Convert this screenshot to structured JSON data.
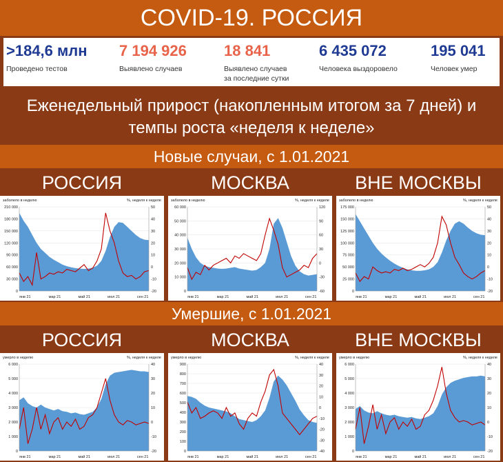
{
  "title": "COVID-19. РОССИЯ",
  "stats": [
    {
      "value": ">184,6 млн",
      "label": "Проведено тестов",
      "color": "#1f3a93"
    },
    {
      "value": "7 194 926",
      "label": "Выявлено случаев",
      "color": "#e8634a"
    },
    {
      "value": "18 841",
      "label": "Выявлено случаев\nза последние сутки",
      "color": "#e8634a"
    },
    {
      "value": "6 435 072",
      "label": "Человека выздоровело",
      "color": "#1f3a93"
    },
    {
      "value": "195 041",
      "label": "Человек умер",
      "color": "#1f3a93"
    }
  ],
  "subtitle": "Еженедельный прирост (накопленным итогом за 7 дней) и темпы роста «неделя к неделе»",
  "section_cases": "Новые случаи, с 1.01.2021",
  "section_deaths": "Умершие, с 1.01.2021",
  "regions": [
    "РОССИЯ",
    "МОСКВА",
    "ВНЕ МОСКВЫ"
  ],
  "colors": {
    "area": "#5b9bd5",
    "line": "#c00000",
    "band_light": "#c55a11",
    "band_dark": "#8b3a16"
  },
  "chart_data": [
    {
      "type": "area",
      "id": "cases-russia",
      "ylabel": "заболело в неделю",
      "y2label": "%, неделя к неделе",
      "yticks": [
        "210 000",
        "180 000",
        "150 000",
        "120 000",
        "90 000",
        "60 000",
        "30 000",
        "0"
      ],
      "y2ticks": [
        "50",
        "40",
        "30",
        "20",
        "10",
        "0",
        "-10",
        "-20"
      ],
      "ylim": [
        0,
        210000
      ],
      "y2lim": [
        -20,
        50
      ],
      "xticks": [
        "янв 21",
        "мар 21",
        "май 21",
        "июл 21",
        "сен 21"
      ],
      "series": [
        {
          "values": [
            195000,
            175000,
            160000,
            140000,
            120000,
            105000,
            95000,
            85000,
            78000,
            72000,
            66000,
            62000,
            59000,
            57000,
            56000,
            55000,
            56000,
            58000,
            63000,
            75000,
            100000,
            135000,
            160000,
            172000,
            170000,
            160000,
            150000,
            140000,
            132000,
            128000,
            127000
          ]
        },
        {
          "values": [
            -5,
            -12,
            -8,
            -15,
            12,
            -10,
            -8,
            -5,
            -6,
            -4,
            -5,
            -2,
            -3,
            -4,
            -1,
            2,
            -3,
            -1,
            5,
            15,
            45,
            30,
            20,
            5,
            -5,
            -8,
            -7,
            -10,
            -8,
            -4,
            -3
          ]
        }
      ]
    },
    {
      "type": "area",
      "id": "cases-moscow",
      "ylabel": "заболело в неделю",
      "y2label": "%, неделя к неделе",
      "yticks": [
        "60 000",
        "50 000",
        "40 000",
        "30 000",
        "20 000",
        "10 000",
        "0"
      ],
      "y2ticks": [
        "120",
        "90",
        "60",
        "30",
        "0",
        "-30",
        "-60"
      ],
      "ylim": [
        0,
        60000
      ],
      "y2lim": [
        -60,
        120
      ],
      "xticks": [
        "янв 21",
        "мар 21",
        "май 21",
        "июл 21",
        "сен 21"
      ],
      "series": [
        {
          "values": [
            38000,
            30000,
            24000,
            20000,
            18000,
            17000,
            16500,
            16000,
            15800,
            16000,
            16500,
            17000,
            16000,
            15500,
            15000,
            14500,
            15000,
            17000,
            20000,
            30000,
            48000,
            52000,
            45000,
            35000,
            25000,
            18000,
            14000,
            12000,
            11000,
            11500,
            12000
          ]
        },
        {
          "values": [
            -10,
            -35,
            -20,
            -25,
            -5,
            -15,
            -5,
            0,
            5,
            10,
            0,
            15,
            10,
            20,
            15,
            10,
            5,
            20,
            60,
            95,
            70,
            40,
            -10,
            -30,
            -25,
            -20,
            -15,
            -5,
            -10,
            10,
            20
          ]
        }
      ]
    },
    {
      "type": "area",
      "id": "cases-outside",
      "ylabel": "заболело в неделю",
      "y2label": "%, неделя к неделе",
      "yticks": [
        "175 000",
        "150 000",
        "125 000",
        "100 000",
        "75 000",
        "50 000",
        "25 000",
        "0"
      ],
      "y2ticks": [
        "50",
        "40",
        "30",
        "20",
        "10",
        "0",
        "-10",
        "-20"
      ],
      "ylim": [
        0,
        175000
      ],
      "y2lim": [
        -20,
        50
      ],
      "xticks": [
        "янв 21",
        "мар 21",
        "май 21",
        "июл 21",
        "сен 21"
      ],
      "series": [
        {
          "values": [
            160000,
            145000,
            130000,
            115000,
            100000,
            88000,
            78000,
            70000,
            63000,
            57000,
            52000,
            48000,
            45000,
            43000,
            42000,
            42000,
            43000,
            45000,
            50000,
            60000,
            80000,
            105000,
            125000,
            140000,
            145000,
            140000,
            132000,
            125000,
            120000,
            117000,
            116000
          ]
        },
        {
          "values": [
            -5,
            -12,
            -8,
            -10,
            0,
            -3,
            -5,
            -4,
            -5,
            -2,
            -3,
            -1,
            -3,
            -2,
            0,
            2,
            0,
            3,
            8,
            20,
            42,
            35,
            20,
            8,
            2,
            -5,
            -8,
            -10,
            -8,
            -5,
            -3
          ]
        }
      ]
    },
    {
      "type": "area",
      "id": "deaths-russia",
      "ylabel": "умерло в неделю",
      "y2label": "%, неделя к неделе",
      "yticks": [
        "6 000",
        "5 000",
        "4 000",
        "3 000",
        "2 000",
        "1 000",
        "0"
      ],
      "y2ticks": [
        "40",
        "30",
        "20",
        "10",
        "0",
        "-10",
        "-20"
      ],
      "ylim": [
        0,
        6000
      ],
      "y2lim": [
        -20,
        40
      ],
      "xticks": [
        "янв 21",
        "мар 21",
        "май 21",
        "июл 21",
        "сен 21"
      ],
      "series": [
        {
          "values": [
            3500,
            3700,
            3300,
            3100,
            3000,
            3200,
            3000,
            2900,
            2800,
            2900,
            2750,
            2700,
            2600,
            2650,
            2550,
            2500,
            2600,
            2700,
            3000,
            3600,
            4600,
            5200,
            5400,
            5450,
            5500,
            5550,
            5600,
            5550,
            5500,
            5500,
            5450
          ]
        },
        {
          "values": [
            -5,
            10,
            -15,
            -5,
            10,
            -5,
            5,
            -8,
            0,
            3,
            -5,
            0,
            -3,
            2,
            -5,
            -3,
            3,
            5,
            10,
            20,
            30,
            15,
            5,
            0,
            -2,
            1,
            0,
            -2,
            -1,
            0,
            -1
          ]
        }
      ]
    },
    {
      "type": "area",
      "id": "deaths-moscow",
      "ylabel": "умерло в неделю",
      "y2label": "%, неделя к неделе",
      "yticks": [
        "900",
        "800",
        "700",
        "600",
        "500",
        "400",
        "300",
        "200",
        "100",
        "0"
      ],
      "y2ticks": [
        "40",
        "30",
        "20",
        "10",
        "0",
        "-10",
        "-20",
        "-30",
        "-40"
      ],
      "ylim": [
        0,
        900
      ],
      "y2lim": [
        -40,
        40
      ],
      "xticks": [
        "янв 21",
        "мар 21",
        "май 21",
        "июл 21",
        "сен 21"
      ],
      "series": [
        {
          "values": [
            570,
            560,
            540,
            500,
            470,
            450,
            440,
            430,
            420,
            410,
            390,
            360,
            330,
            320,
            310,
            300,
            320,
            360,
            420,
            550,
            720,
            780,
            740,
            680,
            600,
            520,
            430,
            370,
            320,
            300,
            290
          ]
        },
        {
          "values": [
            5,
            -5,
            0,
            -10,
            -8,
            -5,
            -3,
            -5,
            -10,
            0,
            -8,
            -5,
            -15,
            -20,
            -10,
            -5,
            -8,
            5,
            15,
            30,
            35,
            20,
            -5,
            -10,
            -15,
            -20,
            -25,
            -20,
            -15,
            -10,
            -8
          ]
        }
      ]
    },
    {
      "type": "area",
      "id": "deaths-outside",
      "ylabel": "умерло в неделю",
      "y2label": "%, неделя к неделе",
      "yticks": [
        "6 000",
        "5 000",
        "4 000",
        "3 000",
        "2 000",
        "1 000",
        "0"
      ],
      "y2ticks": [
        "40",
        "30",
        "20",
        "10",
        "0",
        "-10",
        "-20"
      ],
      "ylim": [
        0,
        6000
      ],
      "y2lim": [
        -20,
        40
      ],
      "xticks": [
        "янв 21",
        "мар 21",
        "май 21",
        "июл 21",
        "сен 21"
      ],
      "series": [
        {
          "values": [
            2900,
            3100,
            2800,
            2650,
            2600,
            2750,
            2600,
            2500,
            2450,
            2500,
            2400,
            2350,
            2300,
            2350,
            2250,
            2200,
            2300,
            2400,
            2600,
            3100,
            3900,
            4400,
            4700,
            4850,
            4950,
            5050,
            5100,
            5150,
            5150,
            5200,
            5150
          ]
        },
        {
          "values": [
            -5,
            10,
            -15,
            -3,
            12,
            -5,
            5,
            -8,
            0,
            3,
            -5,
            0,
            -3,
            2,
            -5,
            -3,
            5,
            8,
            15,
            25,
            38,
            20,
            8,
            3,
            0,
            1,
            0,
            -2,
            -1,
            0,
            -2
          ]
        }
      ]
    }
  ]
}
